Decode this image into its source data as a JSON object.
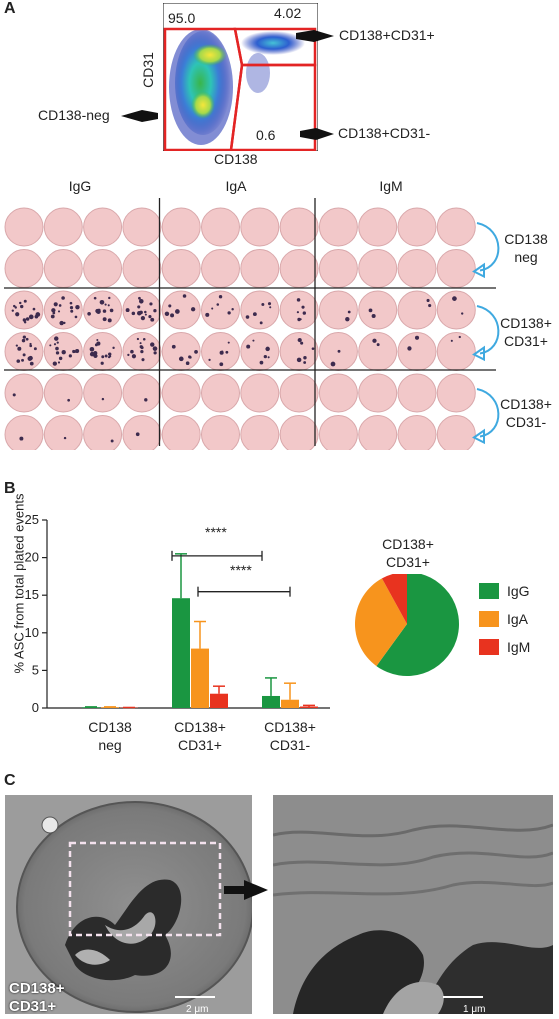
{
  "panel_a": {
    "letter": "A",
    "flow": {
      "y_axis_label": "CD31",
      "x_axis_label": "CD138",
      "gate_values": [
        "95.0",
        "4.02",
        "0.6"
      ],
      "arrow_labels": {
        "top_right": "CD138+CD31+",
        "bottom_right": "CD138+CD31-",
        "left": "CD138-neg"
      }
    },
    "elispot": {
      "columns": [
        "IgG",
        "IgA",
        "IgM"
      ],
      "row_labels": [
        [
          "CD138",
          "neg"
        ],
        [
          "CD138+",
          "CD31+"
        ],
        [
          "CD138+",
          "CD31-"
        ]
      ],
      "well_color": "#f2c8c9",
      "spot_color": "#3d2b4e",
      "arrow_color": "#3fa9e0"
    }
  },
  "panel_b": {
    "letter": "B",
    "significance": [
      "****",
      "****"
    ]
  },
  "chart_data": [
    {
      "type": "bar",
      "ylabel": "% ASC from total plated events",
      "ylim": [
        0,
        25
      ],
      "yticks": [
        0,
        5,
        10,
        15,
        20,
        25
      ],
      "categories": [
        [
          "CD138",
          "neg"
        ],
        [
          "CD138+",
          "CD31+"
        ],
        [
          "CD138+",
          "CD31-"
        ]
      ],
      "series": [
        {
          "name": "IgG",
          "color": "#1a9641",
          "values": [
            0.1,
            14.6,
            1.6
          ],
          "errors": [
            0.05,
            5.9,
            2.4
          ]
        },
        {
          "name": "IgA",
          "color": "#f7941d",
          "values": [
            0.1,
            7.9,
            1.1
          ],
          "errors": [
            0.05,
            3.6,
            2.2
          ]
        },
        {
          "name": "IgM",
          "color": "#e8331f",
          "values": [
            0.05,
            1.9,
            0.2
          ],
          "errors": [
            0.02,
            1.0,
            0.15
          ]
        }
      ],
      "grid": false
    },
    {
      "type": "pie",
      "title": [
        "CD138+",
        "CD31+"
      ],
      "slices": [
        {
          "name": "IgG",
          "value": 60,
          "color": "#1a9641"
        },
        {
          "name": "IgA",
          "value": 32,
          "color": "#f7941d"
        },
        {
          "name": "IgM",
          "value": 8,
          "color": "#e8331f"
        }
      ],
      "legend": "right"
    }
  ],
  "panel_c": {
    "letter": "C",
    "cell_label": [
      "CD138+",
      "CD31+"
    ],
    "scale_left": "2 μm",
    "scale_right": "1 μm"
  }
}
